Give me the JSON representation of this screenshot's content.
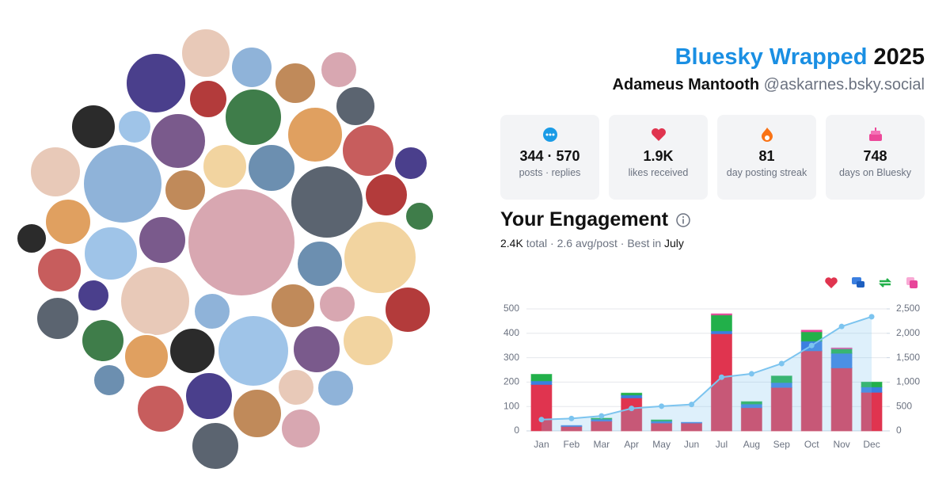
{
  "header": {
    "brand": "Bluesky Wrapped",
    "year": "2025",
    "name": "Adameus Mantooth",
    "handle": "@askarnes.bsky.social"
  },
  "stats": [
    {
      "value": "344 · 570",
      "label": "posts · replies"
    },
    {
      "value": "1.9K",
      "label": "likes received"
    },
    {
      "value": "81",
      "label": "day posting streak"
    },
    {
      "value": "748",
      "label": "days on Bluesky"
    }
  ],
  "engagement": {
    "title": "Your Engagement",
    "total": "2.4K",
    "summary": "total · 2.6 avg/post · Best in",
    "best": "July"
  },
  "chart_data": {
    "type": "bar",
    "categories": [
      "Jan",
      "Feb",
      "Mar",
      "Apr",
      "May",
      "Jun",
      "Jul",
      "Aug",
      "Sep",
      "Oct",
      "Nov",
      "Dec"
    ],
    "series": [
      {
        "color": "#e0344f",
        "values": [
          190,
          18,
          40,
          135,
          32,
          32,
          398,
          95,
          178,
          328,
          258,
          158
        ]
      },
      {
        "color": "#3b7fe0",
        "values": [
          15,
          4,
          8,
          12,
          8,
          3,
          12,
          15,
          20,
          40,
          60,
          22
        ]
      },
      {
        "color": "#22b04a",
        "values": [
          27,
          0,
          4,
          8,
          5,
          0,
          65,
          10,
          27,
          38,
          18,
          20
        ]
      },
      {
        "color": "#e8459a",
        "values": [
          0,
          0,
          0,
          0,
          0,
          0,
          5,
          0,
          0,
          7,
          4,
          0
        ]
      },
      {
        "type": "area",
        "axis": "y2",
        "color": "#7cc4ef",
        "values": [
          232,
          254,
          306,
          461,
          506,
          541,
          1100,
          1170,
          1380,
          1750,
          2140,
          2340
        ]
      }
    ],
    "ylim": [
      0,
      500
    ],
    "yticks": [
      0,
      100,
      200,
      300,
      400,
      500
    ],
    "y2lim": [
      0,
      2500
    ],
    "y2ticks": [
      0,
      500,
      {
        "value": 1000,
        "label": "1,000"
      },
      {
        "value": 1500,
        "label": "1,500"
      },
      {
        "value": 2000,
        "label": "2,000"
      },
      {
        "value": 2500,
        "label": "2,500"
      }
    ],
    "grid": true
  }
}
